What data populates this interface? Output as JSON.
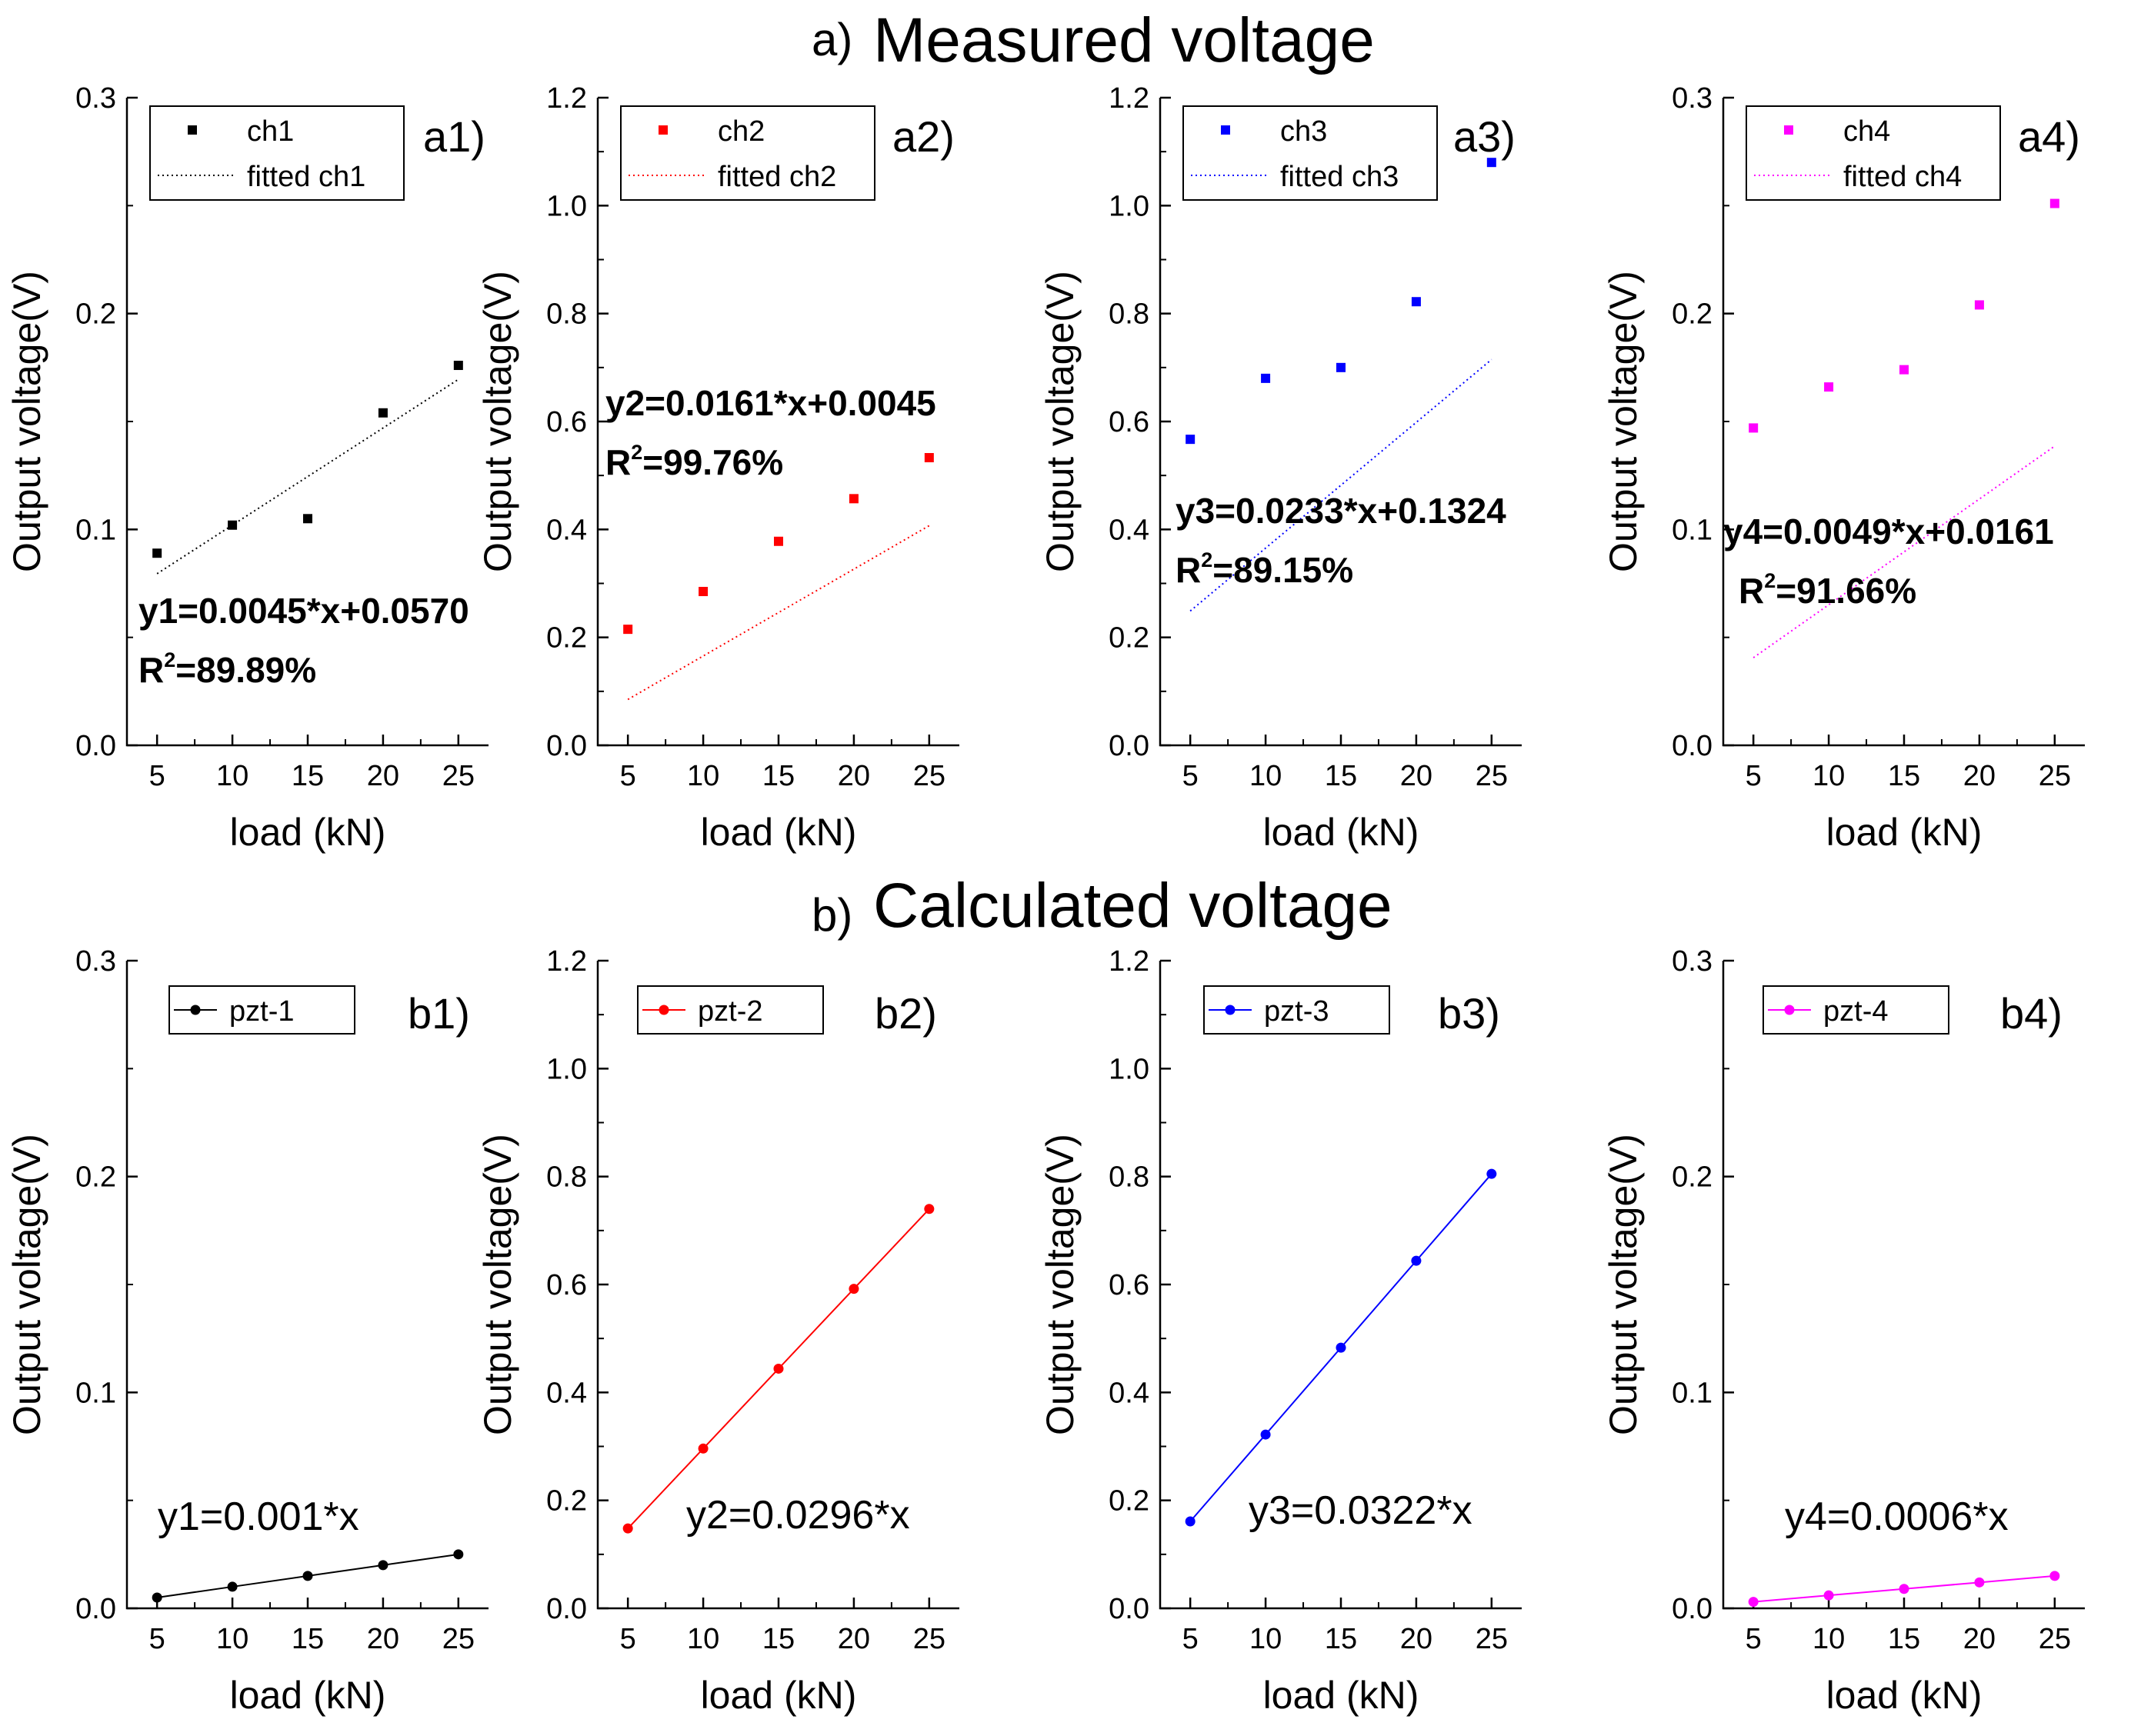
{
  "sections": [
    {
      "prefix": "a)",
      "title": "Measured voltage"
    },
    {
      "prefix": "b)",
      "title": "Calculated voltage"
    }
  ],
  "chart_data": [
    {
      "id": "a1",
      "type": "scatter",
      "row": 0,
      "col": 0,
      "panel_label": "a1)",
      "color": "#000000",
      "xlabel": "load (kN)",
      "ylabel": "Output voltage(V)",
      "xlim": [
        3,
        27
      ],
      "ylim": [
        0,
        0.3
      ],
      "xticks": [
        "5",
        "10",
        "15",
        "20",
        "25"
      ],
      "yticks": [
        "0.0",
        "0.1",
        "0.2",
        "0.3"
      ],
      "series": [
        {
          "name": "ch1",
          "x": [
            5,
            10,
            15,
            20,
            25
          ],
          "y": [
            0.089,
            0.102,
            0.105,
            0.154,
            0.176
          ]
        }
      ],
      "fit": {
        "name": "fitted ch1",
        "slope": 0.0045,
        "intercept": 0.057,
        "x": [
          5,
          25
        ]
      },
      "equation": "y1=0.0045*x+0.0570",
      "r2": "=89.89%",
      "legend": "top-left",
      "grid": false
    },
    {
      "id": "a2",
      "type": "scatter",
      "row": 0,
      "col": 1,
      "panel_label": "a2)",
      "color": "#ff0000",
      "xlabel": "load (kN)",
      "ylabel": "Output voltage(V)",
      "xlim": [
        3,
        27
      ],
      "ylim": [
        0,
        1.2
      ],
      "xticks": [
        "5",
        "10",
        "15",
        "20",
        "25"
      ],
      "yticks": [
        "0.0",
        "0.2",
        "0.4",
        "0.6",
        "0.8",
        "1.0",
        "1.2"
      ],
      "series": [
        {
          "name": "ch2",
          "x": [
            5,
            10,
            15,
            20,
            25
          ],
          "y": [
            0.215,
            0.285,
            0.378,
            0.457,
            0.533
          ]
        }
      ],
      "fit": {
        "name": "fitted ch2",
        "slope": 0.0161,
        "intercept": 0.0045,
        "x": [
          5,
          25
        ]
      },
      "equation": "y2=0.0161*x+0.0045",
      "r2": "=99.76%",
      "legend": "top-left",
      "grid": false
    },
    {
      "id": "a3",
      "type": "scatter",
      "row": 0,
      "col": 2,
      "panel_label": "a3)",
      "color": "#0000ff",
      "xlabel": "load (kN)",
      "ylabel": "Output voltage(V)",
      "xlim": [
        3,
        27
      ],
      "ylim": [
        0,
        1.2
      ],
      "xticks": [
        "5",
        "10",
        "15",
        "20",
        "25"
      ],
      "yticks": [
        "0.0",
        "0.2",
        "0.4",
        "0.6",
        "0.8",
        "1.0",
        "1.2"
      ],
      "series": [
        {
          "name": "ch3",
          "x": [
            5,
            10,
            15,
            20,
            25
          ],
          "y": [
            0.567,
            0.68,
            0.7,
            0.822,
            1.08
          ]
        }
      ],
      "fit": {
        "name": "fitted ch3",
        "slope": 0.0233,
        "intercept": 0.1324,
        "x": [
          5,
          25
        ]
      },
      "equation": "y3=0.0233*x+0.1324",
      "r2": "=89.15%",
      "legend": "top-left",
      "grid": false
    },
    {
      "id": "a4",
      "type": "scatter",
      "row": 0,
      "col": 3,
      "panel_label": "a4)",
      "color": "#ff00ff",
      "xlabel": "load (kN)",
      "ylabel": "Output voltage(V)",
      "xlim": [
        3,
        27
      ],
      "ylim": [
        0,
        0.3
      ],
      "xticks": [
        "5",
        "10",
        "15",
        "20",
        "25"
      ],
      "yticks": [
        "0.0",
        "0.1",
        "0.2",
        "0.3"
      ],
      "series": [
        {
          "name": "ch4",
          "x": [
            5,
            10,
            15,
            20,
            25
          ],
          "y": [
            0.147,
            0.166,
            0.174,
            0.204,
            0.251
          ]
        }
      ],
      "fit": {
        "name": "fitted ch4",
        "slope": 0.0049,
        "intercept": 0.0161,
        "x": [
          5,
          25
        ]
      },
      "equation": "y4=0.0049*x+0.0161",
      "r2": "=91.66%",
      "legend": "top-left",
      "grid": false
    },
    {
      "id": "b1",
      "type": "line",
      "row": 1,
      "col": 0,
      "panel_label": "b1)",
      "color": "#000000",
      "xlabel": "load (kN)",
      "ylabel": "Output voltage(V)",
      "xlim": [
        3,
        27
      ],
      "ylim": [
        0,
        0.3
      ],
      "xticks": [
        "5",
        "10",
        "15",
        "20",
        "25"
      ],
      "yticks": [
        "0.0",
        "0.1",
        "0.2",
        "0.3"
      ],
      "series": [
        {
          "name": "pzt-1",
          "x": [
            5,
            10,
            15,
            20,
            25
          ],
          "y": [
            0.005,
            0.01,
            0.015,
            0.02,
            0.025
          ]
        }
      ],
      "equation": "y1=0.001*x",
      "legend": "top-left",
      "grid": false
    },
    {
      "id": "b2",
      "type": "line",
      "row": 1,
      "col": 1,
      "panel_label": "b2)",
      "color": "#ff0000",
      "xlabel": "load (kN)",
      "ylabel": "Output voltage(V)",
      "xlim": [
        3,
        27
      ],
      "ylim": [
        0,
        1.2
      ],
      "xticks": [
        "5",
        "10",
        "15",
        "20",
        "25"
      ],
      "yticks": [
        "0.0",
        "0.2",
        "0.4",
        "0.6",
        "0.8",
        "1.0",
        "1.2"
      ],
      "series": [
        {
          "name": "pzt-2",
          "x": [
            5,
            10,
            15,
            20,
            25
          ],
          "y": [
            0.148,
            0.296,
            0.444,
            0.592,
            0.74
          ]
        }
      ],
      "equation": "y2=0.0296*x",
      "legend": "top-left",
      "grid": false
    },
    {
      "id": "b3",
      "type": "line",
      "row": 1,
      "col": 2,
      "panel_label": "b3)",
      "color": "#0000ff",
      "xlabel": "load (kN)",
      "ylabel": "Output voltage(V)",
      "xlim": [
        3,
        27
      ],
      "ylim": [
        0,
        1.2
      ],
      "xticks": [
        "5",
        "10",
        "15",
        "20",
        "25"
      ],
      "yticks": [
        "0.0",
        "0.2",
        "0.4",
        "0.6",
        "0.8",
        "1.0",
        "1.2"
      ],
      "series": [
        {
          "name": "pzt-3",
          "x": [
            5,
            10,
            15,
            20,
            25
          ],
          "y": [
            0.161,
            0.322,
            0.483,
            0.644,
            0.805
          ]
        }
      ],
      "equation": "y3=0.0322*x",
      "legend": "top-left",
      "grid": false
    },
    {
      "id": "b4",
      "type": "line",
      "row": 1,
      "col": 3,
      "panel_label": "b4)",
      "color": "#ff00ff",
      "xlabel": "load (kN)",
      "ylabel": "Output voltage(V)",
      "xlim": [
        3,
        27
      ],
      "ylim": [
        0,
        0.3
      ],
      "xticks": [
        "5",
        "10",
        "15",
        "20",
        "25"
      ],
      "yticks": [
        "0.0",
        "0.1",
        "0.2",
        "0.3"
      ],
      "series": [
        {
          "name": "pzt-4",
          "x": [
            5,
            10,
            15,
            20,
            25
          ],
          "y": [
            0.003,
            0.006,
            0.009,
            0.012,
            0.015
          ]
        }
      ],
      "equation": "y4=0.0006*x",
      "legend": "top-left",
      "grid": false
    }
  ]
}
